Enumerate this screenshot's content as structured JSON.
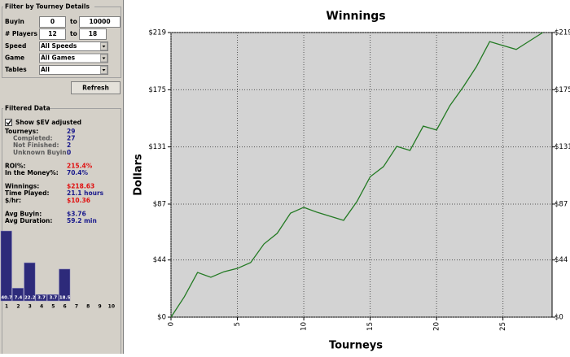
{
  "filter": {
    "title": "Filter by Tourney Details",
    "to_label": "to",
    "ranges": [
      {
        "label": "Buyin",
        "from": "0",
        "to": "10000"
      },
      {
        "label": "# Players",
        "from": "12",
        "to": "18"
      }
    ],
    "selects": [
      {
        "label": "Speed",
        "value": "All Speeds"
      },
      {
        "label": "Game",
        "value": "All Games"
      },
      {
        "label": "Tables",
        "value": "All"
      }
    ]
  },
  "refresh": "Refresh",
  "filtered": {
    "title": "Filtered Data",
    "checkbox": "Show $EV adjusted",
    "checked": true,
    "stat_groups": [
      [
        {
          "label": "Tourneys:",
          "value": "29"
        },
        {
          "label": "Completed:",
          "value": "27",
          "sub": true
        },
        {
          "label": "Not Finished:",
          "value": "2",
          "sub": true
        },
        {
          "label": "Unknown Buyin:",
          "value": "0",
          "sub": true
        }
      ],
      [
        {
          "label": "ROI%:",
          "value": "215.4%",
          "highlight": true
        },
        {
          "label": "In the Money%:",
          "value": "70.4%"
        }
      ],
      [
        {
          "label": "Winnings:",
          "value": "$218.63",
          "highlight": true
        },
        {
          "label": "Time Played:",
          "value": "21.1 hours"
        },
        {
          "label": "$/hr:",
          "value": "$10.36",
          "highlight": true
        }
      ],
      [
        {
          "label": "Avg Buyin:",
          "value": "$3.76"
        },
        {
          "label": "Avg Duration:",
          "value": "59.2 min"
        }
      ]
    ]
  },
  "finish_chart": {
    "type": "bar",
    "categories": [
      1,
      2,
      3,
      4,
      5,
      6,
      7,
      8,
      9,
      10
    ],
    "values": [
      40.7,
      7.4,
      22.2,
      3.7,
      3.7,
      18.5,
      0,
      0,
      0,
      0
    ],
    "color": "#2d2a7a"
  },
  "chart": {
    "type": "line",
    "title": "Winnings",
    "y_label": "Dollars",
    "x_label": "Tourneys",
    "x": [
      0,
      1,
      2,
      3,
      4,
      5,
      6,
      7,
      8,
      9,
      10,
      11,
      12,
      13,
      14,
      15,
      16,
      17,
      18,
      19,
      20,
      21,
      22,
      23,
      24,
      25,
      26,
      27,
      28
    ],
    "values": [
      0,
      15.6,
      34.4,
      30.7,
      35,
      37.5,
      42,
      56.3,
      64.5,
      80,
      84.5,
      80.7,
      77.6,
      74.5,
      88.9,
      108,
      115.8,
      131.4,
      128.3,
      147,
      144,
      162.7,
      177,
      192.7,
      212,
      209,
      206,
      212.5,
      219
    ],
    "color": "#237a23",
    "xlim": [
      0,
      28.7
    ],
    "ylim": [
      0,
      219
    ],
    "xticks": [
      0,
      5,
      10,
      15,
      20,
      25
    ],
    "yticks": [
      {
        "value": 0,
        "label": "$0"
      },
      {
        "value": 44,
        "label": "$44"
      },
      {
        "value": 87,
        "label": "$87"
      },
      {
        "value": 131,
        "label": "$131"
      },
      {
        "value": 175,
        "label": "$175"
      },
      {
        "value": 219,
        "label": "$219"
      }
    ],
    "grid": true
  }
}
